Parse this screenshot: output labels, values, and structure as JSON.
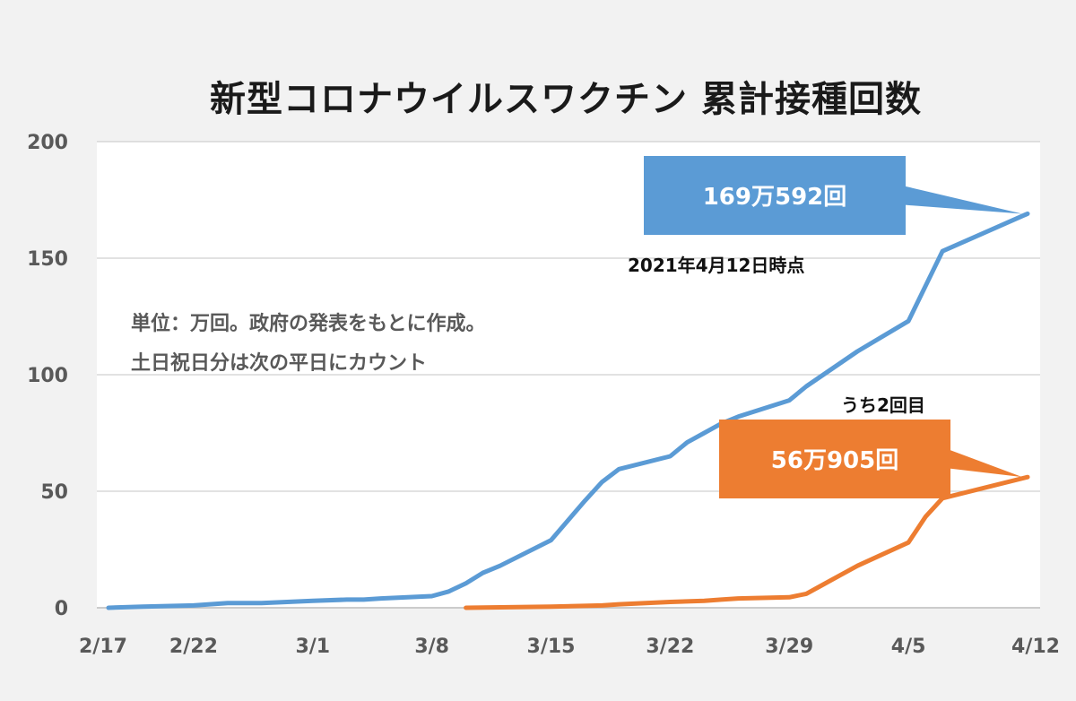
{
  "chart_data": {
    "type": "line",
    "title": "新型コロナウイルスワクチン 累計接種回数",
    "x_tick_labels": [
      "2/17",
      "2/22",
      "3/1",
      "3/8",
      "3/15",
      "3/22",
      "3/29",
      "4/5",
      "4/12"
    ],
    "ylim": [
      0,
      200
    ],
    "y_ticks": [
      0,
      50,
      100,
      150,
      200
    ],
    "grid": true,
    "series": [
      {
        "name": "",
        "color": "#5b9bd5",
        "points": [
          {
            "x": "2/17",
            "y": 0
          },
          {
            "x": "2/19",
            "y": 0.5
          },
          {
            "x": "2/22",
            "y": 1.0
          },
          {
            "x": "2/24",
            "y": 2.0
          },
          {
            "x": "2/26",
            "y": 2.0
          },
          {
            "x": "3/1",
            "y": 3.0
          },
          {
            "x": "3/3",
            "y": 3.5
          },
          {
            "x": "3/4",
            "y": 3.5
          },
          {
            "x": "3/5",
            "y": 4.0
          },
          {
            "x": "3/8",
            "y": 5.0
          },
          {
            "x": "3/9",
            "y": 7.0
          },
          {
            "x": "3/10",
            "y": 10.5
          },
          {
            "x": "3/11",
            "y": 15.0
          },
          {
            "x": "3/12",
            "y": 18.0
          },
          {
            "x": "3/15",
            "y": 29.0
          },
          {
            "x": "3/16",
            "y": 37.5
          },
          {
            "x": "3/17",
            "y": 46.0
          },
          {
            "x": "3/18",
            "y": 54.0
          },
          {
            "x": "3/19",
            "y": 59.5
          },
          {
            "x": "3/22",
            "y": 65.0
          },
          {
            "x": "3/23",
            "y": 71.0
          },
          {
            "x": "3/24",
            "y": 75.0
          },
          {
            "x": "3/25",
            "y": 79.0
          },
          {
            "x": "3/26",
            "y": 82.0
          },
          {
            "x": "3/29",
            "y": 89.0
          },
          {
            "x": "3/30",
            "y": 95.0
          },
          {
            "x": "3/31",
            "y": 100.0
          },
          {
            "x": "4/1",
            "y": 105.0
          },
          {
            "x": "4/2",
            "y": 110.0
          },
          {
            "x": "4/5",
            "y": 123.0
          },
          {
            "x": "4/6",
            "y": 138.0
          },
          {
            "x": "4/7",
            "y": 153.0
          },
          {
            "x": "4/12",
            "y": 169.0592
          }
        ]
      },
      {
        "name": "うち2回目",
        "color": "#ed7d31",
        "points": [
          {
            "x": "3/10",
            "y": 0
          },
          {
            "x": "3/15",
            "y": 0.5
          },
          {
            "x": "3/18",
            "y": 1.0
          },
          {
            "x": "3/19",
            "y": 1.5
          },
          {
            "x": "3/22",
            "y": 2.5
          },
          {
            "x": "3/24",
            "y": 3.0
          },
          {
            "x": "3/25",
            "y": 3.5
          },
          {
            "x": "3/26",
            "y": 4.0
          },
          {
            "x": "3/29",
            "y": 4.5
          },
          {
            "x": "3/30",
            "y": 6.0
          },
          {
            "x": "3/31",
            "y": 10.0
          },
          {
            "x": "4/1",
            "y": 14.0
          },
          {
            "x": "4/2",
            "y": 18.0
          },
          {
            "x": "4/5",
            "y": 28.0
          },
          {
            "x": "4/6",
            "y": 39.0
          },
          {
            "x": "4/7",
            "y": 47.0
          },
          {
            "x": "4/12",
            "y": 56.0905
          }
        ]
      }
    ],
    "annotations": {
      "total_label": "169万592回",
      "second_label": "56万905回",
      "second_caption": "うち2回目",
      "as_of": "2021年4月12日時点",
      "note_line1": "単位：万回。政府の発表をもとに作成。",
      "note_line2": "土日祝日分は次の平日にカウント"
    }
  }
}
